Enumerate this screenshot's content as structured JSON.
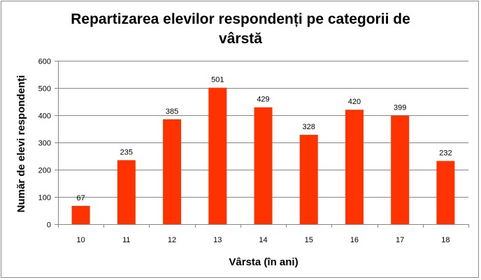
{
  "chart_data": {
    "type": "bar",
    "title_lines": [
      "Repartizarea elevilor respondenți pe categorii de",
      "vârstă"
    ],
    "xlabel": "Vârsta (în ani)",
    "ylabel": "Număr de elevi respondenți",
    "categories": [
      "10",
      "11",
      "12",
      "13",
      "14",
      "15",
      "16",
      "17",
      "18"
    ],
    "values": [
      67,
      235,
      385,
      501,
      429,
      328,
      420,
      399,
      232
    ],
    "ylim": [
      0,
      600
    ],
    "yticks": [
      0,
      100,
      200,
      300,
      400,
      500,
      600
    ],
    "grid": true,
    "legend": "none",
    "bar_color": "#ff3300",
    "grid_color": "#868686",
    "axis_color": "#868686"
  }
}
